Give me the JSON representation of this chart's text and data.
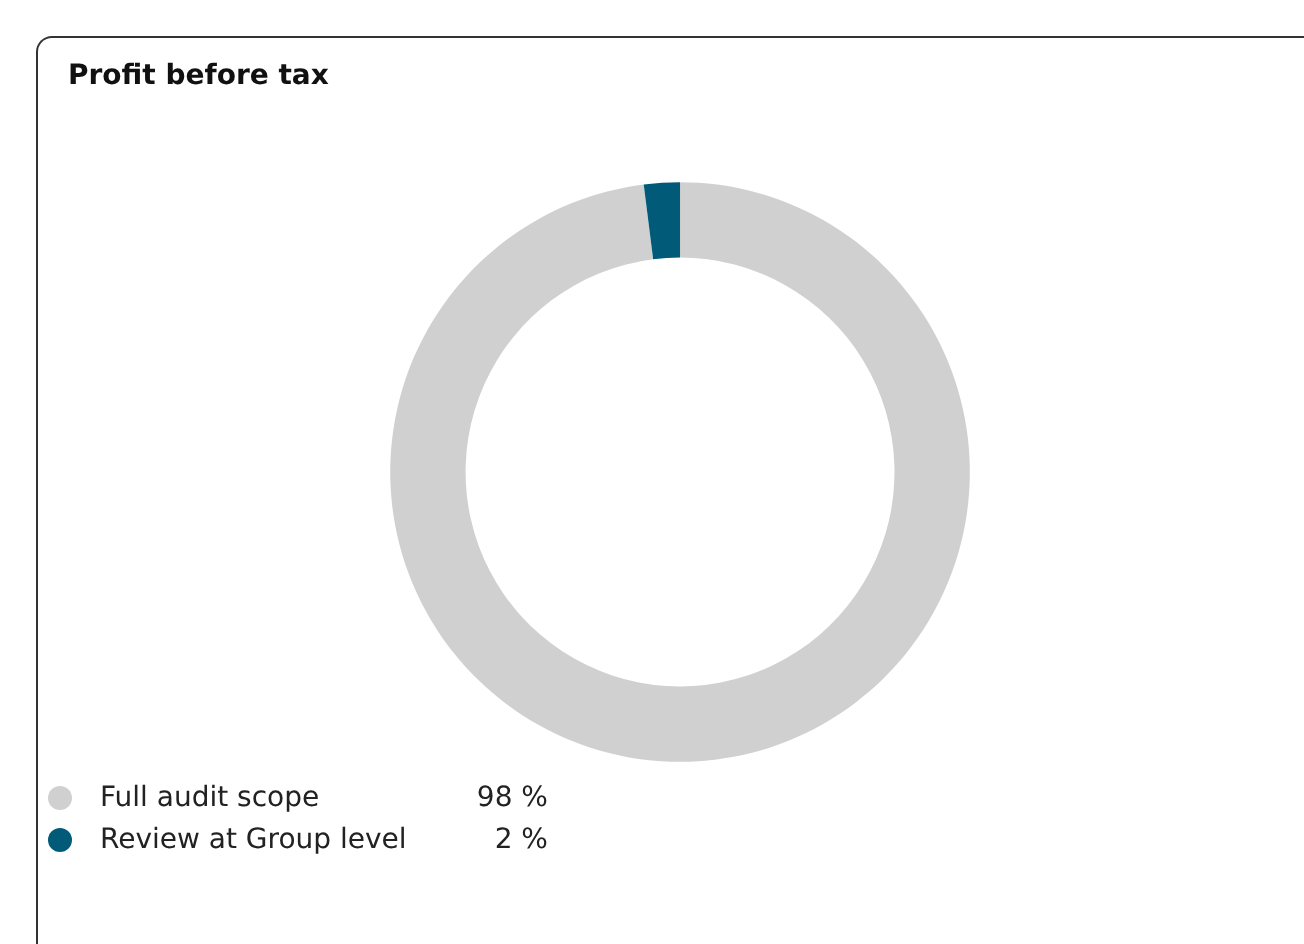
{
  "chart_data": {
    "type": "donut",
    "title": "Profit before tax",
    "categories": [
      "Full audit scope",
      "Review at Group level"
    ],
    "values": [
      98,
      2
    ],
    "colors": [
      "#d0d0d0",
      "#005a78"
    ],
    "value_labels": [
      "98 %",
      "2 %"
    ],
    "legend": "bottom left"
  }
}
